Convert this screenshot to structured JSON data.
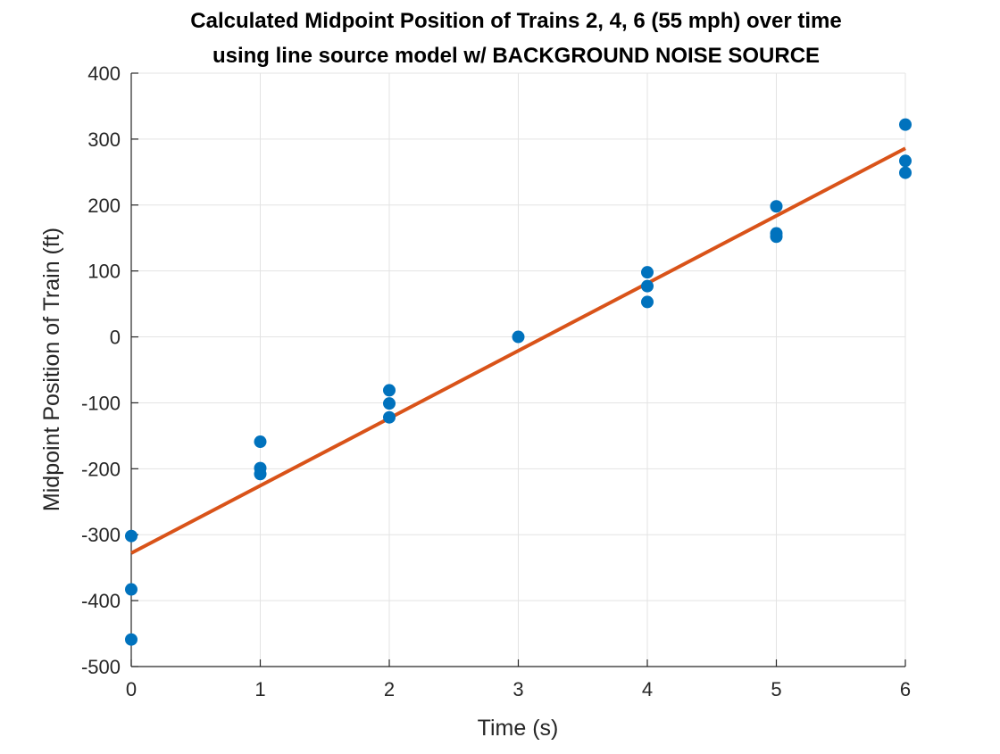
{
  "chart_data": {
    "type": "scatter",
    "title": [
      "Calculated Midpoint Position of Trains 2, 4, 6 (55 mph) over time",
      "using line source model w/ BACKGROUND NOISE SOURCE"
    ],
    "xlabel": "Time (s)",
    "ylabel": "Midpoint Position of Train (ft)",
    "xlim": [
      0,
      6
    ],
    "ylim": [
      -500,
      400
    ],
    "xticks": [
      0,
      1,
      2,
      3,
      4,
      5,
      6
    ],
    "yticks": [
      -500,
      -400,
      -300,
      -200,
      -100,
      0,
      100,
      200,
      300,
      400
    ],
    "grid": true,
    "colors": {
      "points": "#0072BD",
      "fit_line": "#D95319"
    },
    "series": [
      {
        "type": "scatter",
        "x": [
          0,
          0,
          0,
          1,
          1,
          1,
          2,
          2,
          2,
          3,
          4,
          4,
          4,
          5,
          5,
          5,
          6,
          6,
          6
        ],
        "y": [
          -302,
          -383,
          -459,
          -159,
          -199,
          -208,
          -81,
          -101,
          -122,
          0,
          98,
          77,
          53,
          198,
          157,
          152,
          322,
          267,
          249
        ]
      },
      {
        "type": "line",
        "x": [
          0,
          6
        ],
        "y": [
          -328,
          286
        ]
      }
    ]
  }
}
